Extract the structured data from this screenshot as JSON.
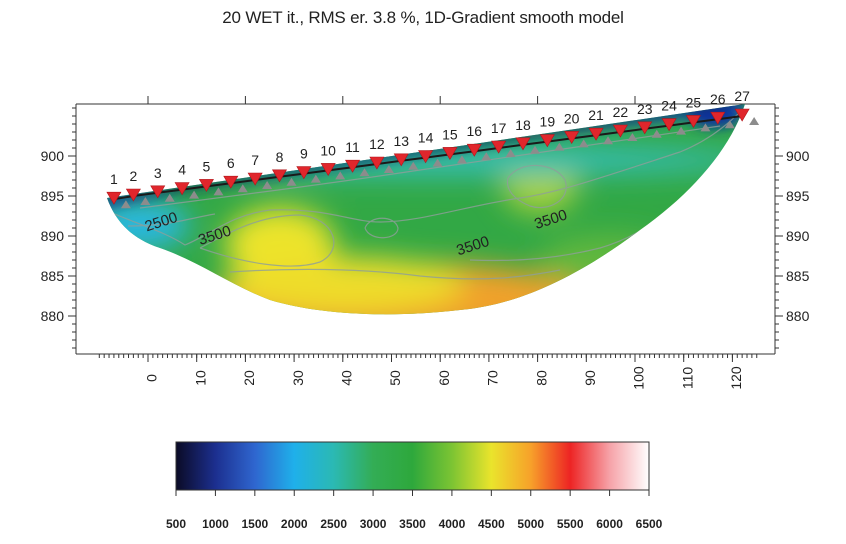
{
  "chart_data": {
    "type": "heatmap",
    "title": "20 WET it., RMS er. 3.8 %, 1D-Gradient smooth model",
    "xlabel": "",
    "ylabel": "",
    "xlim": [
      -10,
      125
    ],
    "ylim": [
      875,
      906
    ],
    "x_ticks": [
      0,
      10,
      20,
      30,
      40,
      50,
      60,
      70,
      80,
      90,
      100,
      110,
      120
    ],
    "y_ticks": [
      880,
      885,
      890,
      895,
      900
    ],
    "geophones": {
      "labels": [
        "1",
        "2",
        "3",
        "4",
        "5",
        "6",
        "7",
        "8",
        "9",
        "10",
        "11",
        "12",
        "13",
        "14",
        "15",
        "16",
        "17",
        "18",
        "19",
        "20",
        "21",
        "22",
        "23",
        "24",
        "25",
        "26",
        "27"
      ],
      "x": [
        -7,
        -3,
        2,
        7,
        12,
        17,
        22,
        27,
        32,
        37,
        42,
        47,
        52,
        57,
        62,
        67,
        72,
        77,
        82,
        87,
        92,
        97,
        102,
        107,
        112,
        117,
        122
      ],
      "elevation": [
        894.6,
        895.0,
        895.4,
        895.8,
        896.2,
        896.6,
        897.0,
        897.4,
        897.8,
        898.2,
        898.6,
        899.0,
        899.4,
        899.8,
        900.2,
        900.6,
        901.0,
        901.4,
        901.8,
        902.2,
        902.6,
        903.0,
        903.4,
        903.8,
        904.2,
        904.6,
        905.0
      ]
    },
    "contour_labels": [
      {
        "text": "2500",
        "x": 3,
        "y": 891.2
      },
      {
        "text": "3500",
        "x": 14,
        "y": 889.5
      },
      {
        "text": "3500",
        "x": 67,
        "y": 888.2
      },
      {
        "text": "3500",
        "x": 83,
        "y": 891.5
      }
    ],
    "colorbar": {
      "min": 500,
      "max": 6500,
      "ticks": [
        500,
        1000,
        1500,
        2000,
        2500,
        3000,
        3500,
        4000,
        4500,
        5000,
        5500,
        6000,
        6500
      ],
      "colors": [
        "#0b0b26",
        "#1c2f8f",
        "#2f66cf",
        "#1fb0ea",
        "#2bb9b3",
        "#33ad55",
        "#2ea83c",
        "#7cc433",
        "#eae42c",
        "#f7a12a",
        "#ed2424",
        "#f6a2a8",
        "#ffffff"
      ]
    }
  }
}
